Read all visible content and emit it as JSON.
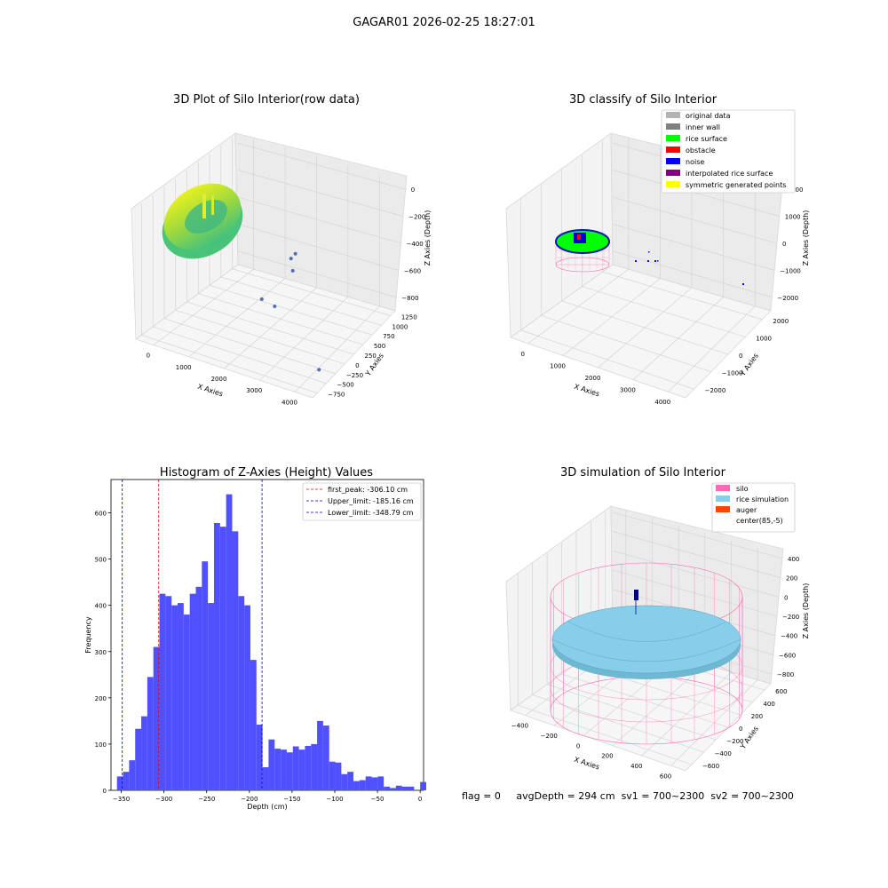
{
  "figure": {
    "suptitle": "GAGAR01 2026-02-25 18:27:01",
    "stats": {
      "flag": "flag = 0",
      "avg": "avgDepth = 294 cm",
      "sv1": "sv1 = 700~2300",
      "sv2": "sv2 = 700~2300"
    }
  },
  "chart_data": [
    {
      "type": "scatter",
      "projection": "3d",
      "title": "3D Plot of Silo Interior(row data)",
      "xlabel": "X Axies",
      "ylabel": "Y Axies",
      "zlabel": "Z Axies (Depth)",
      "x_ticks": [
        "0",
        "1000",
        "2000",
        "3000",
        "4000"
      ],
      "y_ticks": [
        "−750",
        "−500",
        "−250",
        "0",
        "250",
        "500",
        "750",
        "1000",
        "1250"
      ],
      "z_ticks": [
        "−800",
        "−600",
        "−400",
        "−200",
        "0"
      ],
      "xlim": [
        -400,
        4400
      ],
      "ylim": [
        -750,
        1300
      ],
      "zlim": [
        -900,
        0
      ],
      "outlier_points": [
        {
          "x": 1700,
          "y": 900,
          "z": -550
        },
        {
          "x": 1650,
          "y": 850,
          "z": -575
        },
        {
          "x": 1900,
          "y": 700,
          "z": -600
        },
        {
          "x": 1600,
          "y": 300,
          "z": -720
        },
        {
          "x": 1950,
          "y": 300,
          "z": -740
        },
        {
          "x": 4100,
          "y": -400,
          "z": -820
        }
      ],
      "colors": {
        "surface_low": "#40c080",
        "surface_high": "#e8f020",
        "outlier": "#5070b0"
      }
    },
    {
      "type": "scatter",
      "projection": "3d",
      "title": "3D classify of Silo Interior",
      "xlabel": "X Axies",
      "ylabel": "Y Axies",
      "zlabel": "Z Axies (Depth)",
      "x_ticks": [
        "0",
        "1000",
        "2000",
        "3000",
        "4000"
      ],
      "y_ticks": [
        "−2000",
        "−1000",
        "0",
        "1000",
        "2000"
      ],
      "z_ticks": [
        "−2000",
        "−1000",
        "0",
        "1000",
        "2000"
      ],
      "legend": [
        {
          "label": "original data",
          "color": "#b3b3b3"
        },
        {
          "label": "inner wall",
          "color": "#808080"
        },
        {
          "label": "rice surface",
          "color": "#00ff00"
        },
        {
          "label": "obstacle",
          "color": "#ff0000"
        },
        {
          "label": "noise",
          "color": "#0000ff"
        },
        {
          "label": "interpolated rice surface",
          "color": "#800080"
        },
        {
          "label": "symmetric generated points",
          "color": "#ffff00"
        }
      ],
      "legend_loc": "upper right"
    },
    {
      "type": "bar",
      "title": "Histogram of Z-Axies (Height) Values",
      "xlabel": "Depth (cm)",
      "ylabel": "Frequency",
      "xlim": [
        -362,
        4
      ],
      "ylim": [
        0,
        672
      ],
      "x_ticks": [
        -350,
        -300,
        -250,
        -200,
        -150,
        -100,
        -50,
        0
      ],
      "y_ticks": [
        0,
        100,
        200,
        300,
        400,
        500,
        600
      ],
      "bin_start": -355,
      "bin_width": 7.1,
      "values": [
        30,
        40,
        65,
        133,
        160,
        245,
        310,
        425,
        420,
        400,
        405,
        380,
        425,
        440,
        495,
        405,
        578,
        570,
        640,
        560,
        420,
        400,
        282,
        142,
        50,
        110,
        90,
        88,
        82,
        95,
        88,
        96,
        100,
        150,
        140,
        62,
        60,
        35,
        40,
        20,
        22,
        30,
        28,
        30,
        8,
        5,
        10,
        8,
        8,
        0,
        18
      ],
      "bar_color": "#5050ff",
      "vlines": [
        {
          "x": -306.1,
          "color": "#dd0000",
          "label": "first_peak: -306.10 cm"
        },
        {
          "x": -185.16,
          "color": "#0000cc",
          "label": "Upper_limit: -185.16 cm"
        },
        {
          "x": -348.79,
          "color": "#0000cc",
          "label": "Lower_limit: -348.79 cm"
        }
      ],
      "legend_loc": "upper right"
    },
    {
      "type": "scatter",
      "projection": "3d",
      "title": "3D simulation of Silo Interior",
      "xlabel": "X Axies",
      "ylabel": "Y Axies",
      "zlabel": "Z Axies (Depth)",
      "x_ticks": [
        "−400",
        "−200",
        "0",
        "200",
        "400",
        "600"
      ],
      "y_ticks": [
        "−600",
        "−400",
        "−200",
        "0",
        "200",
        "400",
        "600"
      ],
      "z_ticks": [
        "−800",
        "−600",
        "−400",
        "−200",
        "0",
        "200",
        "400"
      ],
      "legend": [
        {
          "label": "silo",
          "color": "#ff69b4"
        },
        {
          "label": "rice simulation",
          "color": "#87ceeb"
        },
        {
          "label": "auger",
          "color": "#ff4500"
        },
        {
          "label": "center(85,-5)",
          "color": "#ffffff"
        }
      ],
      "legend_loc": "upper right"
    }
  ]
}
